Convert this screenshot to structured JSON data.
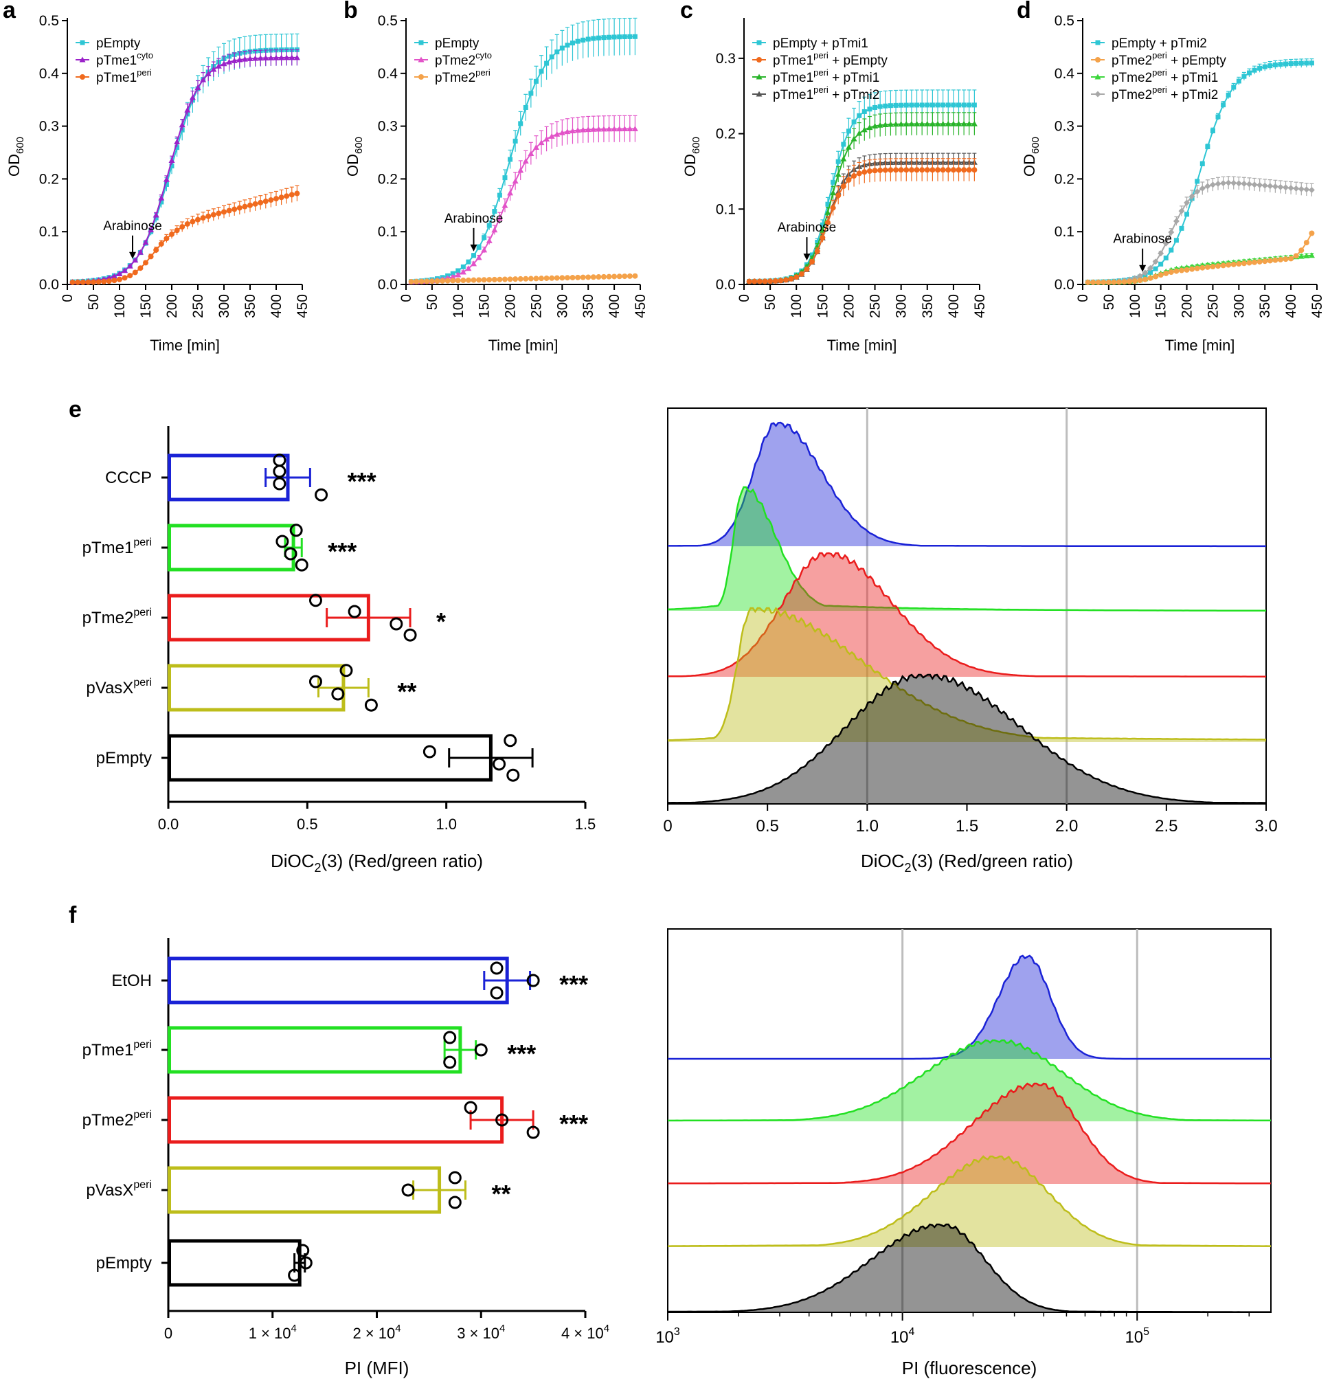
{
  "colors": {
    "cyan": "#2ec6d4",
    "purple": "#9b22c9",
    "orange": "#f06a1e",
    "magenta": "#e253c8",
    "light_orange": "#f4a24a",
    "green": "#29b42a",
    "gray": "#555555",
    "light_gray": "#a8a8a8",
    "bright_green": "#3cd63c",
    "blue": "#1a22d6",
    "lime": "#22e022",
    "red": "#ea1c1c",
    "olive": "#bdbd1a",
    "black": "#000000"
  },
  "chart_data": [
    {
      "panel": "a",
      "type": "line",
      "xlabel": "Time [min]",
      "ylabel": "OD600",
      "ylabel_main": "OD",
      "ylabel_sub": "600",
      "xlim": [
        0,
        450
      ],
      "ylim": [
        0,
        0.5
      ],
      "xticks": [
        "0",
        "50",
        "100",
        "150",
        "200",
        "250",
        "300",
        "350",
        "400",
        "450"
      ],
      "yticks": [
        "0.0",
        "0.1",
        "0.2",
        "0.3",
        "0.4",
        "0.5"
      ],
      "annotation": "Arabinose",
      "annotation_x": 125,
      "legend": [
        {
          "name": "pEmpty",
          "base": "pEmpty",
          "sup": "",
          "marker": "square",
          "color_key": "cyan"
        },
        {
          "name": "pTme1cyto",
          "base": "pTme1",
          "sup": "cyto",
          "marker": "triangle",
          "color_key": "purple"
        },
        {
          "name": "pTme1peri",
          "base": "pTme1",
          "sup": "peri",
          "marker": "circle",
          "color_key": "orange"
        }
      ],
      "series": [
        {
          "name": "pEmpty",
          "color_key": "cyan",
          "err": 0.03,
          "kind": "sig",
          "final": 0.445,
          "mid": 200,
          "k": 0.032
        },
        {
          "name": "pTme1cyto",
          "color_key": "purple",
          "err": 0.015,
          "kind": "sig",
          "final": 0.43,
          "mid": 195,
          "k": 0.034
        },
        {
          "name": "pTme1peri",
          "color_key": "orange",
          "err": 0.015,
          "kind": "plateau",
          "p1": 0.11,
          "t1": 205,
          "final": 0.175
        }
      ]
    },
    {
      "panel": "b",
      "type": "line",
      "xlabel": "Time [min]",
      "ylabel": "OD600",
      "ylabel_main": "OD",
      "ylabel_sub": "600",
      "xlim": [
        0,
        450
      ],
      "ylim": [
        0,
        0.5
      ],
      "xticks": [
        "0",
        "50",
        "100",
        "150",
        "200",
        "250",
        "300",
        "350",
        "400",
        "450"
      ],
      "yticks": [
        "0.0",
        "0.1",
        "0.2",
        "0.3",
        "0.4",
        "0.5"
      ],
      "annotation": "Arabinose",
      "annotation_x": 130,
      "legend": [
        {
          "name": "pEmpty",
          "base": "pEmpty",
          "sup": "",
          "marker": "square",
          "color_key": "cyan"
        },
        {
          "name": "pTme2cyto",
          "base": "pTme2",
          "sup": "cyto",
          "marker": "triangle",
          "color_key": "magenta"
        },
        {
          "name": "pTme2peri",
          "base": "pTme2",
          "sup": "peri",
          "marker": "circle",
          "color_key": "light_orange"
        }
      ],
      "series": [
        {
          "name": "pEmpty",
          "color_key": "cyan",
          "err": 0.035,
          "kind": "sig",
          "final": 0.47,
          "mid": 200,
          "k": 0.03
        },
        {
          "name": "pTme2cyto",
          "color_key": "magenta",
          "err": 0.025,
          "kind": "sig",
          "final": 0.295,
          "mid": 190,
          "k": 0.033
        },
        {
          "name": "pTme2peri",
          "color_key": "light_orange",
          "err": 0.003,
          "kind": "flat",
          "v0": 0.005,
          "final": 0.016
        }
      ]
    },
    {
      "panel": "c",
      "type": "line",
      "xlabel": "Time [min]",
      "ylabel": "OD600",
      "ylabel_main": "OD",
      "ylabel_sub": "600",
      "xlim": [
        0,
        450
      ],
      "ylim": [
        0,
        0.35
      ],
      "xticks": [
        "0",
        "50",
        "100",
        "150",
        "200",
        "250",
        "300",
        "350",
        "400",
        "450"
      ],
      "yticks": [
        "0.0",
        "0.1",
        "0.2",
        "0.3"
      ],
      "annotation": "Arabinose",
      "annotation_x": 120,
      "legend": [
        {
          "name": "pEmpty + pTmi1",
          "base": "pEmpty + pTmi1",
          "sup": "",
          "marker": "square",
          "color_key": "cyan"
        },
        {
          "name": "pTme1peri + pEmpty",
          "base": "pTme1",
          "sup": "peri",
          "rest": " + pEmpty",
          "marker": "circle",
          "color_key": "orange"
        },
        {
          "name": "pTme1peri + pTmi1",
          "base": "pTme1",
          "sup": "peri",
          "rest": " + pTmi1",
          "marker": "triangle",
          "color_key": "green"
        },
        {
          "name": "pTme1peri + pTmi2",
          "base": "pTme1",
          "sup": "peri",
          "rest": " + pTmi2",
          "marker": "triangle",
          "color_key": "gray"
        }
      ],
      "series": [
        {
          "name": "pEmpty + pTmi1",
          "color_key": "cyan",
          "err": 0.02,
          "kind": "sig",
          "final": 0.238,
          "mid": 165,
          "k": 0.05
        },
        {
          "name": "pTme1peri + pTmi1",
          "color_key": "green",
          "err": 0.015,
          "kind": "sig",
          "final": 0.213,
          "mid": 165,
          "k": 0.05
        },
        {
          "name": "pTme1peri + pTmi2",
          "color_key": "gray",
          "err": 0.012,
          "kind": "sig",
          "final": 0.162,
          "mid": 160,
          "k": 0.055
        },
        {
          "name": "pTme1peri + pEmpty",
          "color_key": "orange",
          "err": 0.015,
          "kind": "sig",
          "final": 0.152,
          "mid": 158,
          "k": 0.055
        }
      ]
    },
    {
      "panel": "d",
      "type": "line",
      "xlabel": "Time [min]",
      "ylabel": "OD600",
      "ylabel_main": "OD",
      "ylabel_sub": "600",
      "xlim": [
        0,
        450
      ],
      "ylim": [
        0,
        0.5
      ],
      "xticks": [
        "0",
        "50",
        "100",
        "150",
        "200",
        "250",
        "300",
        "350",
        "400",
        "450"
      ],
      "yticks": [
        "0.0",
        "0.1",
        "0.2",
        "0.3",
        "0.4",
        "0.5"
      ],
      "annotation": "Arabinose",
      "annotation_x": 115,
      "legend": [
        {
          "name": "pEmpty + pTmi2",
          "base": "pEmpty + pTmi2",
          "sup": "",
          "marker": "square",
          "color_key": "cyan"
        },
        {
          "name": "pTme2peri + pEmpty",
          "base": "pTme2",
          "sup": "peri",
          "rest": " + pEmpty",
          "marker": "circle",
          "color_key": "light_orange"
        },
        {
          "name": "pTme2peri + pTmi1",
          "base": "pTme2",
          "sup": "peri",
          "rest": " + pTmi1",
          "marker": "triangle",
          "color_key": "bright_green"
        },
        {
          "name": "pTme2peri + pTmi2",
          "base": "pTme2",
          "sup": "peri",
          "rest": " + pTmi2",
          "marker": "diamond",
          "color_key": "light_gray"
        }
      ],
      "series": [
        {
          "name": "pEmpty + pTmi2",
          "color_key": "cyan",
          "err": 0.008,
          "kind": "sig",
          "final": 0.42,
          "mid": 225,
          "k": 0.032
        },
        {
          "name": "pTme2peri + pTmi2",
          "color_key": "light_gray",
          "err": 0.012,
          "kind": "hump",
          "peak": 0.19,
          "tpk": 280,
          "final": 0.175
        },
        {
          "name": "pTme2peri + pTmi1",
          "color_key": "bright_green",
          "err": 0.004,
          "kind": "slow",
          "p1": 0.03,
          "t1": 200,
          "final": 0.055
        },
        {
          "name": "pTme2peri + pEmpty",
          "color_key": "light_orange",
          "err": 0.003,
          "kind": "rise_end",
          "p1": 0.025,
          "t1": 200,
          "p2": 0.045,
          "t2": 400,
          "final": 0.097
        }
      ]
    },
    {
      "panel": "e",
      "type": "bar",
      "xlabel": "DiOC2(3) (Red/green ratio)",
      "xlabel_pre": "DiOC",
      "xlabel_sub": "2",
      "xlabel_post": "(3) (Red/green ratio)",
      "xlim": [
        0,
        1.5
      ],
      "xticks": [
        "0.0",
        "0.5",
        "1.0",
        "1.5"
      ],
      "categories": [
        {
          "label": "CCCP",
          "base": "CCCP",
          "sup": "",
          "mean": 0.43,
          "sd": 0.08,
          "points": [
            0.4,
            0.4,
            0.4,
            0.55
          ],
          "stars": "***",
          "color_key": "blue"
        },
        {
          "label": "pTme1peri",
          "base": "pTme1",
          "sup": "peri",
          "mean": 0.45,
          "sd": 0.03,
          "points": [
            0.46,
            0.41,
            0.44,
            0.48
          ],
          "stars": "***",
          "color_key": "lime"
        },
        {
          "label": "pTme2peri",
          "base": "pTme2",
          "sup": "peri",
          "mean": 0.72,
          "sd": 0.15,
          "points": [
            0.53,
            0.67,
            0.82,
            0.87
          ],
          "stars": "*",
          "color_key": "red"
        },
        {
          "label": "pVasXperi",
          "base": "pVasX",
          "sup": "peri",
          "mean": 0.63,
          "sd": 0.09,
          "points": [
            0.64,
            0.53,
            0.61,
            0.73
          ],
          "stars": "**",
          "color_key": "olive"
        },
        {
          "label": "pEmpty",
          "base": "pEmpty",
          "sup": "",
          "mean": 1.16,
          "sd": 0.15,
          "points": [
            1.23,
            0.94,
            1.19,
            1.24
          ],
          "stars": "",
          "color_key": "black"
        }
      ]
    },
    {
      "panel": "e-histogram",
      "type": "area",
      "xlabel": "DiOC2(3) (Red/green ratio)",
      "xlabel_pre": "DiOC",
      "xlabel_sub": "2",
      "xlabel_post": "(3) (Red/green ratio)",
      "xlim": [
        0,
        3.0
      ],
      "xticks": [
        "0",
        "0.5",
        "1.0",
        "1.5",
        "2.0",
        "2.5",
        "3.0"
      ],
      "gridlines": [
        1.0,
        2.0
      ],
      "series": [
        {
          "name": "CCCP",
          "color_key": "blue",
          "peak": 0.55,
          "left_width": 0.12,
          "right_width": 0.22,
          "tail": 0.01
        },
        {
          "name": "pTme1peri",
          "color_key": "lime",
          "peak": 0.38,
          "left_width": 0.05,
          "right_width": 0.16,
          "tail": 0.08
        },
        {
          "name": "pTme2peri",
          "color_key": "red",
          "peak": 0.8,
          "left_width": 0.22,
          "right_width": 0.32,
          "tail": 0.01
        },
        {
          "name": "pVasXperi",
          "color_key": "olive",
          "peak": 0.42,
          "left_width": 0.07,
          "right_width": 0.55,
          "tail": 0.06
        },
        {
          "name": "pEmpty",
          "color_key": "black",
          "peak": 1.28,
          "left_width": 0.38,
          "right_width": 0.48,
          "tail": 0.02
        }
      ]
    },
    {
      "panel": "f",
      "type": "bar",
      "xlabel": "PI (MFI)",
      "xlim": [
        0,
        40000
      ],
      "xticks": [
        "0",
        "1 × 10",
        "2 × 10",
        "3 × 10",
        "4 × 10"
      ],
      "xtick_exp": "4",
      "categories": [
        {
          "label": "EtOH",
          "base": "EtOH",
          "sup": "",
          "mean": 32500,
          "sd": 2200,
          "points": [
            31500,
            35000,
            31500
          ],
          "stars": "***",
          "color_key": "blue"
        },
        {
          "label": "pTme1peri",
          "base": "pTme1",
          "sup": "peri",
          "mean": 28000,
          "sd": 1500,
          "points": [
            27000,
            30000,
            27000
          ],
          "stars": "***",
          "color_key": "lime"
        },
        {
          "label": "pTme2peri",
          "base": "pTme2",
          "sup": "peri",
          "mean": 32000,
          "sd": 3000,
          "points": [
            29000,
            32000,
            35000
          ],
          "stars": "***",
          "color_key": "red"
        },
        {
          "label": "pVasXperi",
          "base": "pVasX",
          "sup": "peri",
          "mean": 26000,
          "sd": 2500,
          "points": [
            27500,
            23000,
            27500
          ],
          "stars": "**",
          "color_key": "olive"
        },
        {
          "label": "pEmpty",
          "base": "pEmpty",
          "sup": "",
          "mean": 12600,
          "sd": 500,
          "points": [
            12900,
            13200,
            12100
          ],
          "stars": "",
          "color_key": "black"
        }
      ]
    },
    {
      "panel": "f-histogram",
      "type": "area",
      "xlabel": "PI (fluorescence)",
      "xscale": "log",
      "xlim_log10": [
        3,
        5.57
      ],
      "xticks": [
        "10",
        "10",
        "10"
      ],
      "xtick_exps": [
        "3",
        "4",
        "5"
      ],
      "gridlines_log10": [
        4,
        5
      ],
      "series": [
        {
          "name": "EtOH",
          "color_key": "blue",
          "peak_log10": 4.53,
          "left_width": 0.12,
          "right_width": 0.1,
          "tail": 0.0
        },
        {
          "name": "pTme1peri",
          "color_key": "lime",
          "peak_log10": 4.4,
          "left_width": 0.3,
          "right_width": 0.28,
          "tail": 0.03
        },
        {
          "name": "pTme2peri",
          "color_key": "red",
          "peak_log10": 4.58,
          "left_width": 0.28,
          "right_width": 0.17,
          "tail": 0.02
        },
        {
          "name": "pVasXperi",
          "color_key": "olive",
          "peak_log10": 4.4,
          "left_width": 0.27,
          "right_width": 0.22,
          "tail": 0.04
        },
        {
          "name": "pEmpty",
          "color_key": "black",
          "peak_log10": 4.17,
          "left_width": 0.3,
          "right_width": 0.18,
          "tail": 0.02
        }
      ]
    }
  ],
  "panel_labels": [
    "a",
    "b",
    "c",
    "d",
    "e",
    "f"
  ]
}
